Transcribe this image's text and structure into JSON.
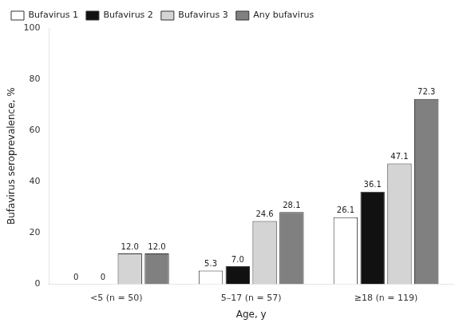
{
  "chart_data": {
    "type": "bar",
    "categories": [
      "<5 (n = 50)",
      "5–17 (n = 57)",
      "≥18 (n = 119)"
    ],
    "series": [
      {
        "name": "Bufavirus 1",
        "color": "#ffffff",
        "values": [
          0,
          5.3,
          26.1
        ],
        "value_labels": [
          "0",
          "5.3",
          "26.1"
        ]
      },
      {
        "name": "Bufavirus 2",
        "color": "#111111",
        "values": [
          0,
          7.0,
          36.1
        ],
        "value_labels": [
          "0",
          "7.0",
          "36.1"
        ]
      },
      {
        "name": "Bufavirus 3",
        "color": "#d4d4d4",
        "values": [
          12.0,
          24.6,
          47.1
        ],
        "value_labels": [
          "12.0",
          "24.6",
          "47.1"
        ]
      },
      {
        "name": "Any bufavirus",
        "color": "#808080",
        "values": [
          12.0,
          28.1,
          72.3
        ],
        "value_labels": [
          "12.0",
          "28.1",
          "72.3"
        ]
      }
    ],
    "xlabel": "Age, y",
    "ylabel": "Bufavirus seroprevalence, %",
    "ylim": [
      0,
      100
    ],
    "yticks": [
      0,
      20,
      40,
      60,
      80,
      100
    ],
    "grid": false,
    "legend": "upper left",
    "data_labels": true
  }
}
